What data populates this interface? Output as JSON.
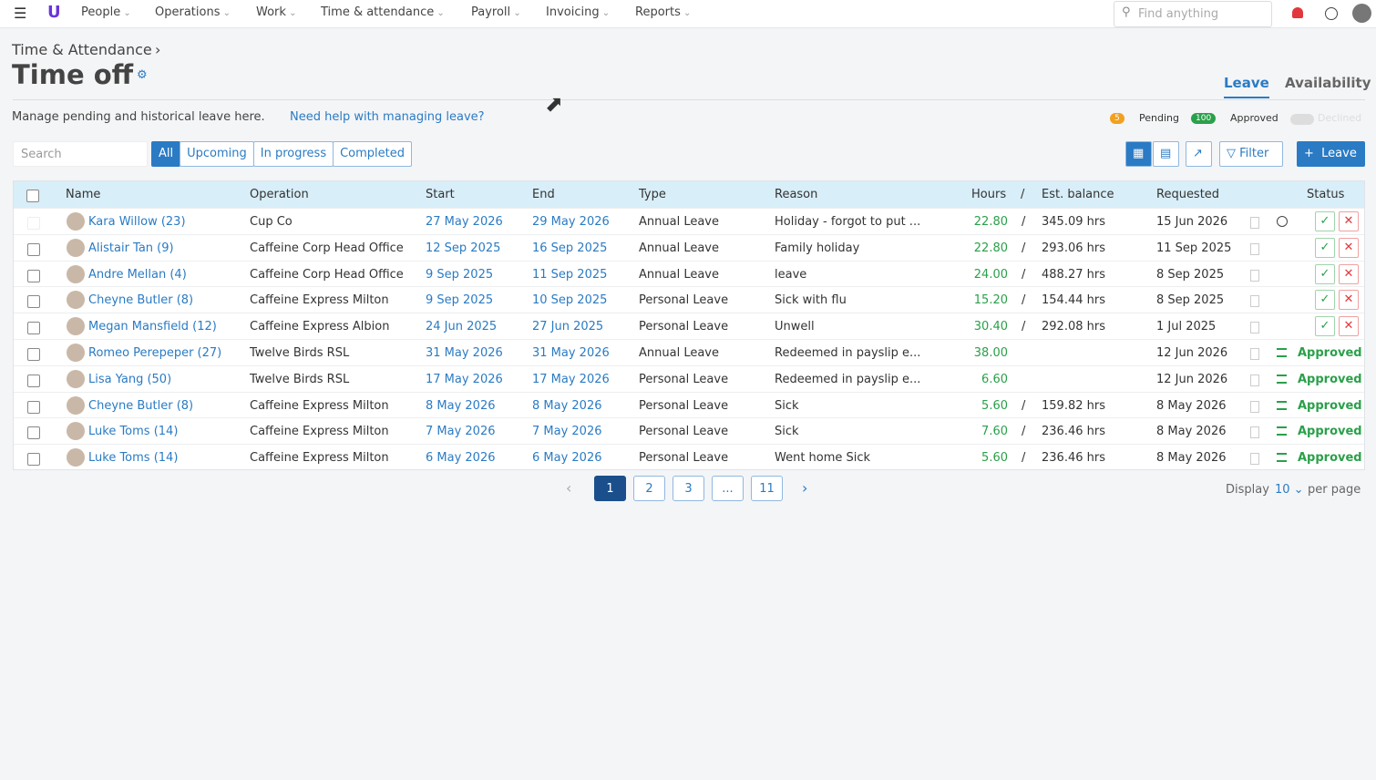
{
  "nav": {
    "items": [
      "People",
      "Operations",
      "Work",
      "Time & attendance",
      "Payroll",
      "Invoicing",
      "Reports"
    ],
    "search_placeholder": "Find anything"
  },
  "header": {
    "breadcrumb": "Time & Attendance",
    "title": "Time off",
    "tabs": [
      "Leave",
      "Availability"
    ],
    "description": "Manage pending and historical leave here.",
    "help_link": "Need help with managing leave?"
  },
  "legend": {
    "pending_count": "5",
    "pending": "Pending",
    "approved_count": "100",
    "approved": "Approved",
    "declined": "Declined"
  },
  "filters": {
    "search_placeholder": "Search",
    "buttons": [
      "All",
      "Upcoming",
      "In progress",
      "Completed"
    ],
    "filter": "Filter",
    "add": "Leave"
  },
  "table": {
    "columns": [
      "Name",
      "Operation",
      "Start",
      "End",
      "Type",
      "Reason",
      "Hours",
      "Est. balance",
      "Requested",
      "Status"
    ],
    "separator": "/",
    "rows": [
      {
        "name": "Kara Willow (23)",
        "operation": "Cup Co",
        "start": "27 May 2026",
        "end": "29 May 2026",
        "type": "Annual Leave",
        "reason": "Holiday - forgot to put ...",
        "hours": "22.80",
        "balance": "345.09 hrs",
        "requested": "15 Jun 2026",
        "status": null
      },
      {
        "name": "Alistair Tan (9)",
        "operation": "Caffeine Corp Head Office",
        "start": "12 Sep 2025",
        "end": "16 Sep 2025",
        "type": "Annual Leave",
        "reason": "Family holiday",
        "hours": "22.80",
        "balance": "293.06 hrs",
        "requested": "11 Sep 2025",
        "status": null
      },
      {
        "name": "Andre Mellan (4)",
        "operation": "Caffeine Corp Head Office",
        "start": "9 Sep 2025",
        "end": "11 Sep 2025",
        "type": "Annual Leave",
        "reason": "leave",
        "hours": "24.00",
        "balance": "488.27 hrs",
        "requested": "8 Sep 2025",
        "status": null
      },
      {
        "name": "Cheyne Butler (8)",
        "operation": "Caffeine Express Milton",
        "start": "9 Sep 2025",
        "end": "10 Sep 2025",
        "type": "Personal Leave",
        "reason": "Sick with flu",
        "hours": "15.20",
        "balance": "154.44 hrs",
        "requested": "8 Sep 2025",
        "status": null
      },
      {
        "name": "Megan Mansfield (12)",
        "operation": "Caffeine Express Albion",
        "start": "24 Jun 2025",
        "end": "27 Jun 2025",
        "type": "Personal Leave",
        "reason": "Unwell",
        "hours": "30.40",
        "balance": "292.08 hrs",
        "requested": "1 Jul 2025",
        "status": null
      },
      {
        "name": "Romeo Perepeper (27)",
        "operation": "Twelve Birds RSL",
        "start": "31 May 2026",
        "end": "31 May 2026",
        "type": "Annual Leave",
        "reason": "Redeemed in payslip e...",
        "hours": "38.00",
        "balance": null,
        "requested": "12 Jun 2026",
        "status": "Approved"
      },
      {
        "name": "Lisa Yang (50)",
        "operation": "Twelve Birds RSL",
        "start": "17 May 2026",
        "end": "17 May 2026",
        "type": "Personal Leave",
        "reason": "Redeemed in payslip e...",
        "hours": "6.60",
        "balance": null,
        "requested": "12 Jun 2026",
        "status": "Approved"
      },
      {
        "name": "Cheyne Butler (8)",
        "operation": "Caffeine Express Milton",
        "start": "8 May 2026",
        "end": "8 May 2026",
        "type": "Personal Leave",
        "reason": "Sick",
        "hours": "5.60",
        "balance": "159.82 hrs",
        "requested": "8 May 2026",
        "status": "Approved"
      },
      {
        "name": "Luke Toms (14)",
        "operation": "Caffeine Express Milton",
        "start": "7 May 2026",
        "end": "7 May 2026",
        "type": "Personal Leave",
        "reason": "Sick",
        "hours": "7.60",
        "balance": "236.46 hrs",
        "requested": "8 May 2026",
        "status": "Approved"
      },
      {
        "name": "Luke Toms (14)",
        "operation": "Caffeine Express Milton",
        "start": "6 May 2026",
        "end": "6 May 2026",
        "type": "Personal Leave",
        "reason": "Went home Sick",
        "hours": "5.60",
        "balance": "236.46 hrs",
        "requested": "8 May 2026",
        "status": "Approved"
      }
    ]
  },
  "pagination": {
    "pages": [
      "1",
      "2",
      "3",
      "...",
      "11"
    ],
    "display": "Display",
    "per_page_value": "10",
    "per_page": "per page"
  }
}
